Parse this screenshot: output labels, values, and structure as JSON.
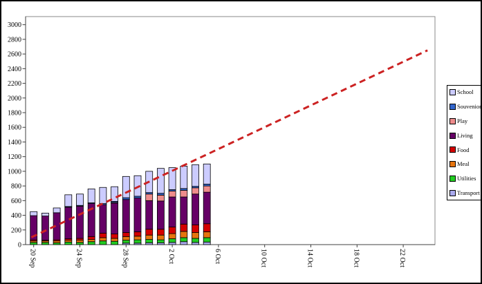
{
  "chart_data": {
    "type": "bar",
    "stacked": true,
    "title": "",
    "xlabel": "",
    "ylabel": "",
    "categories": [
      "20 Sep",
      "21 Sep",
      "22 Sep",
      "23 Sep",
      "24 Sep",
      "25 Sep",
      "26 Sep",
      "27 Sep",
      "28 Sep",
      "29 Sep",
      "30 Sep",
      "1 Oct",
      "2 Oct",
      "3 Oct",
      "4 Oct",
      "5 Oct"
    ],
    "series": [
      {
        "name": "Transport",
        "color": "#AAAAEE",
        "values": [
          0,
          0,
          0,
          0,
          0,
          0,
          0,
          0,
          20,
          20,
          25,
          25,
          30,
          40,
          30,
          35
        ]
      },
      {
        "name": "Utilities",
        "color": "#22CC22",
        "values": [
          30,
          30,
          25,
          35,
          30,
          40,
          50,
          45,
          40,
          45,
          45,
          40,
          50,
          55,
          55,
          60
        ]
      },
      {
        "name": "Meal",
        "color": "#E6740E",
        "values": [
          20,
          20,
          25,
          25,
          30,
          30,
          45,
          40,
          50,
          50,
          60,
          65,
          70,
          85,
          80,
          80
        ]
      },
      {
        "name": "Food",
        "color": "#D40000",
        "values": [
          15,
          10,
          15,
          20,
          25,
          40,
          60,
          60,
          55,
          60,
          80,
          80,
          90,
          100,
          105,
          110
        ]
      },
      {
        "name": "Living",
        "color": "#660066",
        "values": [
          330,
          330,
          370,
          430,
          440,
          450,
          390,
          420,
          450,
          460,
          390,
          385,
          410,
          370,
          420,
          430
        ]
      },
      {
        "name": "Play",
        "color": "#EE8C8C",
        "values": [
          0,
          0,
          0,
          0,
          0,
          0,
          0,
          10,
          0,
          0,
          90,
          80,
          80,
          90,
          85,
          85
        ]
      },
      {
        "name": "Souvenior",
        "color": "#3366CC",
        "values": [
          0,
          0,
          0,
          10,
          10,
          10,
          15,
          15,
          25,
          25,
          20,
          25,
          20,
          25,
          20,
          25
        ]
      },
      {
        "name": "School",
        "color": "#CCCCFF",
        "values": [
          55,
          40,
          65,
          160,
          155,
          190,
          220,
          200,
          290,
          280,
          290,
          340,
          300,
          305,
          295,
          275
        ]
      }
    ],
    "bar_totals": [
      450,
      430,
      500,
      680,
      690,
      760,
      780,
      790,
      930,
      940,
      1000,
      1040,
      1050,
      1070,
      1090,
      1100
    ],
    "y_axis": {
      "min": 0,
      "max": 3000,
      "step": 200,
      "tick_values": [
        0,
        200,
        400,
        600,
        800,
        1000,
        1200,
        1400,
        1600,
        1800,
        2000,
        2200,
        2400,
        2600,
        2800,
        3000
      ]
    },
    "x_axis": {
      "tick_labels": [
        "20 Sep",
        "24 Sep",
        "28 Sep",
        "2 Oct",
        "6 Oct",
        "10 Oct",
        "14 Oct",
        "18 Oct",
        "22 Oct"
      ],
      "tick_days": [
        0,
        4,
        8,
        12,
        16,
        20,
        24,
        28,
        32
      ],
      "label_rotation_deg": 90
    },
    "legend": {
      "position": "right",
      "items_top_to_bottom": [
        "School",
        "Souvenior",
        "Play",
        "Living",
        "Food",
        "Meal",
        "Utilities",
        "Transport"
      ]
    },
    "trendline": {
      "style": "dashed",
      "color": "#CC2222",
      "width": 3,
      "start": {
        "day": -0.2,
        "value": 100
      },
      "end": {
        "day": 34.1,
        "value": 2650
      }
    },
    "grid": "off",
    "plot_background": "#FFFFFF",
    "plot_border_color": "#888888"
  }
}
